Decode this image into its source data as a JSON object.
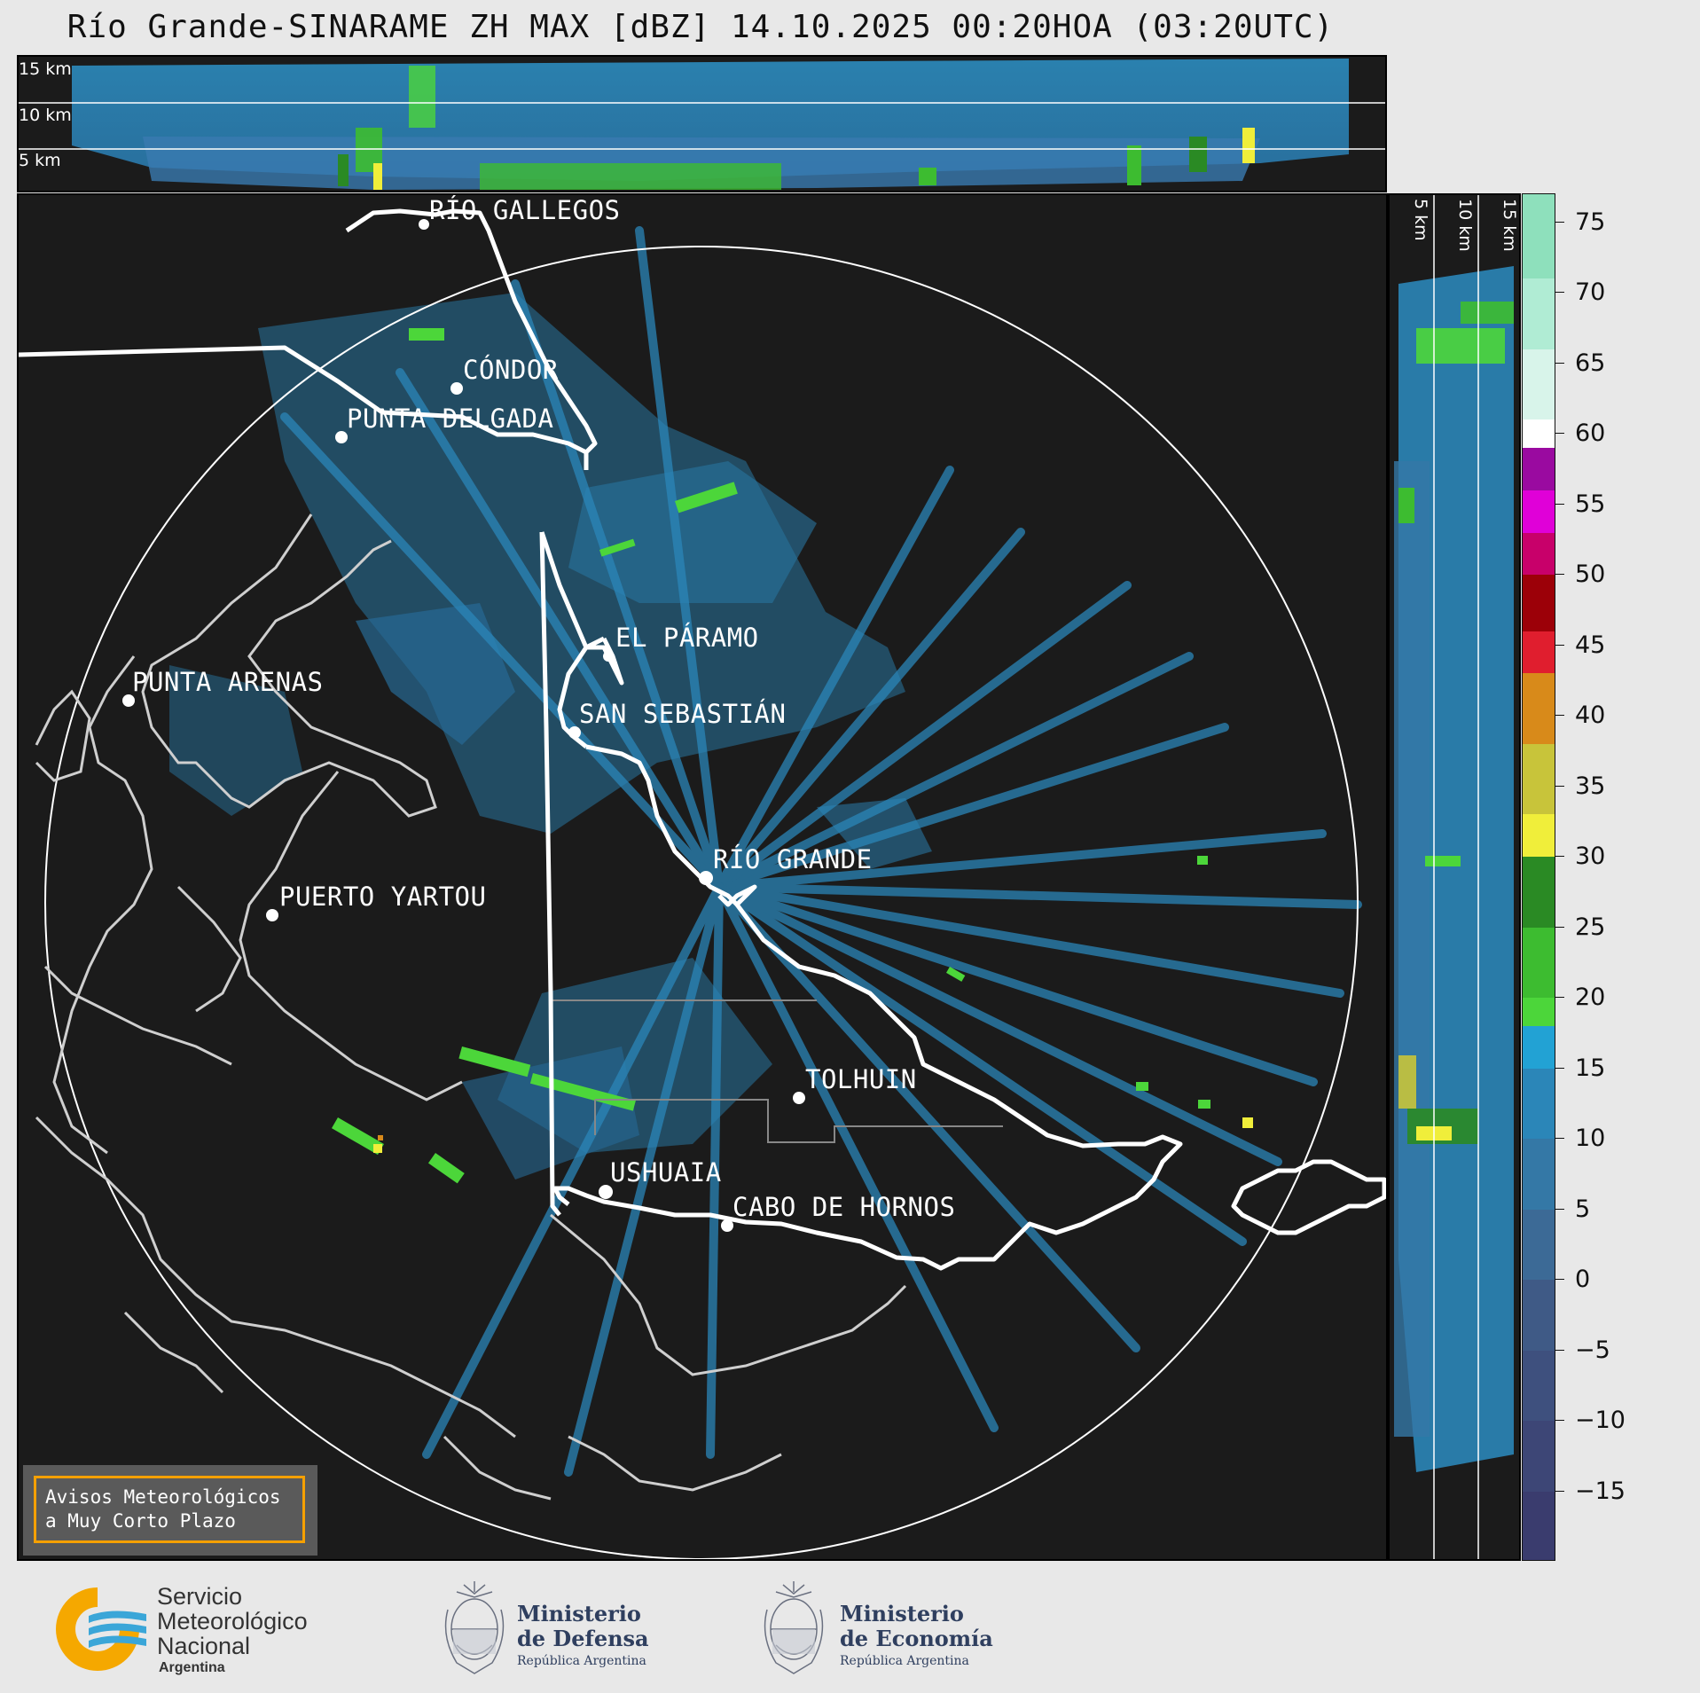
{
  "title": "Río Grande-SINARAME ZH MAX [dBZ] 14.10.2025 00:20HOA (03:20UTC)",
  "top_strip": {
    "labels": [
      "15 km",
      "10 km",
      "5 km"
    ]
  },
  "side_strip": {
    "labels": [
      "5 km",
      "10 km",
      "15 km"
    ]
  },
  "places": [
    {
      "id": "rio-gallegos",
      "name": "RÍO GALLEGOS"
    },
    {
      "id": "condor",
      "name": "CÓNDOR"
    },
    {
      "id": "punta-delgada",
      "name": "PUNTA DELGADA"
    },
    {
      "id": "el-paramo",
      "name": "EL PÁRAMO"
    },
    {
      "id": "punta-arenas",
      "name": "PUNTA ARENAS"
    },
    {
      "id": "san-sebastian",
      "name": "SAN SEBASTIÁN"
    },
    {
      "id": "rio-grande",
      "name": "RÍO GRANDE"
    },
    {
      "id": "puerto-yartou",
      "name": "PUERTO YARTOU"
    },
    {
      "id": "tolhuin",
      "name": "TOLHUIN"
    },
    {
      "id": "ushuaia",
      "name": "USHUAIA"
    },
    {
      "id": "cabo-de-hornos",
      "name": "CABO DE HORNOS"
    }
  ],
  "colorbar": {
    "unit": "dBZ",
    "min": -20,
    "max": 77,
    "ticks": [
      "75",
      "70",
      "65",
      "60",
      "55",
      "50",
      "45",
      "40",
      "35",
      "30",
      "25",
      "20",
      "15",
      "10",
      "5",
      "0",
      "−5",
      "−10",
      "−15"
    ],
    "tick_values": [
      75,
      70,
      65,
      60,
      55,
      50,
      45,
      40,
      35,
      30,
      25,
      20,
      15,
      10,
      5,
      0,
      -5,
      -10,
      -15
    ],
    "bands": [
      {
        "from": -20,
        "to": -15,
        "color": "#3a3c6e"
      },
      {
        "from": -15,
        "to": -10,
        "color": "#3d4676"
      },
      {
        "from": -10,
        "to": -5,
        "color": "#3e507e"
      },
      {
        "from": -5,
        "to": 0,
        "color": "#3f5a86"
      },
      {
        "from": 0,
        "to": 5,
        "color": "#3c6a96"
      },
      {
        "from": 5,
        "to": 10,
        "color": "#3478a6"
      },
      {
        "from": 10,
        "to": 15,
        "color": "#2b86b8"
      },
      {
        "from": 15,
        "to": 18,
        "color": "#22a2d4"
      },
      {
        "from": 18,
        "to": 20,
        "color": "#4cd63a"
      },
      {
        "from": 20,
        "to": 25,
        "color": "#3dbc30"
      },
      {
        "from": 25,
        "to": 30,
        "color": "#2a8a24"
      },
      {
        "from": 30,
        "to": 33,
        "color": "#f0ee3a"
      },
      {
        "from": 33,
        "to": 38,
        "color": "#c8c43a"
      },
      {
        "from": 38,
        "to": 43,
        "color": "#d88a1a"
      },
      {
        "from": 43,
        "to": 46,
        "color": "#e01e2e"
      },
      {
        "from": 46,
        "to": 50,
        "color": "#9c0008"
      },
      {
        "from": 50,
        "to": 53,
        "color": "#c8006a"
      },
      {
        "from": 53,
        "to": 56,
        "color": "#e000d8"
      },
      {
        "from": 56,
        "to": 59,
        "color": "#9a0aa0"
      },
      {
        "from": 59,
        "to": 61,
        "color": "#ffffff"
      },
      {
        "from": 61,
        "to": 66,
        "color": "#d8f4ea"
      },
      {
        "from": 66,
        "to": 71,
        "color": "#b0ecd4"
      },
      {
        "from": 71,
        "to": 77,
        "color": "#8ee0bc"
      }
    ]
  },
  "notice": {
    "line1": "Avisos Meteorológicos",
    "line2": "a Muy Corto Plazo"
  },
  "logos": {
    "smn": {
      "line1": "Servicio",
      "line2": "Meteorológico",
      "line3": "Nacional",
      "line4": "Argentina"
    },
    "defensa": {
      "line1": "Ministerio",
      "line2": "de Defensa",
      "line3": "República Argentina"
    },
    "economia": {
      "line1": "Ministerio",
      "line2": "de Economía",
      "line3": "República Argentina"
    }
  },
  "colors": {
    "background": "#e8e8e8",
    "map_bg": "#1b1b1b",
    "echo_blue": "#2b86b8",
    "echo_green": "#4cd63a",
    "notice_border": "#f5a000"
  }
}
